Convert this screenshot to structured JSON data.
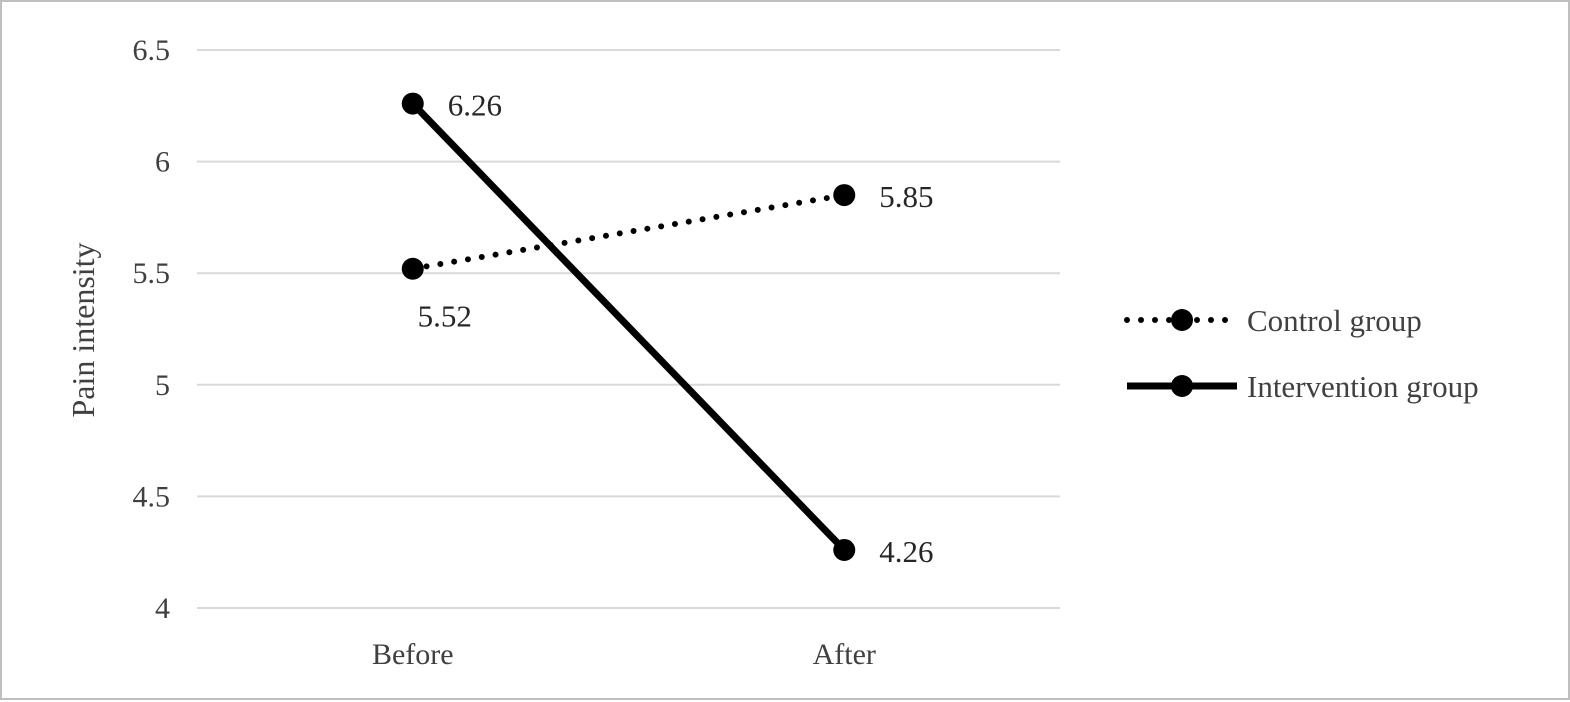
{
  "chart_data": {
    "type": "line",
    "title": "",
    "xlabel": "",
    "ylabel": "Pain intensity",
    "categories": [
      "Before",
      "After"
    ],
    "ylim": [
      4,
      6.5
    ],
    "yticks": [
      "4",
      "4.5",
      "5",
      "5.5",
      "6",
      "6.5"
    ],
    "grid": true,
    "legend_position": "right",
    "series": [
      {
        "name": "Control group",
        "values": [
          5.52,
          5.85
        ],
        "value_labels": [
          "5.52",
          "5.85"
        ],
        "line_style": "dotted",
        "marker": "circle",
        "color": "#000000"
      },
      {
        "name": "Intervention group",
        "values": [
          6.26,
          4.26
        ],
        "value_labels": [
          "6.26",
          "4.26"
        ],
        "line_style": "solid",
        "marker": "circle",
        "color": "#000000"
      }
    ]
  }
}
